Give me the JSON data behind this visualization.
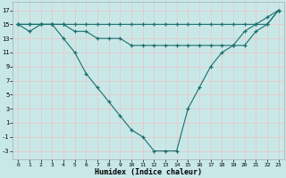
{
  "xlabel": "Humidex (Indice chaleur)",
  "background_color": "#c8e8e8",
  "grid_color": "#e8c8c8",
  "line_color": "#1a6e6e",
  "xlim": [
    -0.5,
    23.5
  ],
  "ylim": [
    -4.2,
    18.2
  ],
  "xticks": [
    0,
    1,
    2,
    3,
    4,
    5,
    6,
    7,
    8,
    9,
    10,
    11,
    12,
    13,
    14,
    15,
    16,
    17,
    18,
    19,
    20,
    21,
    22,
    23
  ],
  "yticks": [
    -3,
    -1,
    1,
    3,
    5,
    7,
    9,
    11,
    13,
    15,
    17
  ],
  "line1_x": [
    0,
    1,
    2,
    3,
    4,
    5,
    6,
    7,
    8,
    9,
    10,
    11,
    12,
    13,
    14,
    15,
    16,
    17,
    18,
    19,
    20,
    21,
    22,
    23
  ],
  "line1_y": [
    15,
    15,
    15,
    15,
    15,
    15,
    15,
    15,
    15,
    15,
    15,
    15,
    15,
    15,
    15,
    15,
    15,
    15,
    15,
    15,
    15,
    15,
    15,
    17
  ],
  "line2_x": [
    0,
    1,
    2,
    3,
    4,
    5,
    6,
    7,
    8,
    9,
    10,
    11,
    12,
    13,
    14,
    15,
    16,
    17,
    18,
    19,
    20,
    21,
    22,
    23
  ],
  "line2_y": [
    15,
    15,
    15,
    15,
    15,
    14,
    14,
    13,
    13,
    13,
    12,
    12,
    12,
    12,
    12,
    12,
    12,
    12,
    12,
    12,
    12,
    14,
    15,
    17
  ],
  "line3_x": [
    0,
    1,
    2,
    3,
    4,
    5,
    6,
    7,
    8,
    9,
    10,
    11,
    12,
    13,
    14,
    15,
    16,
    17,
    18,
    19,
    20,
    21,
    22,
    23
  ],
  "line3_y": [
    15,
    14,
    15,
    15,
    13,
    11,
    8,
    6,
    4,
    2,
    0,
    -1,
    -3,
    -3,
    -3,
    3,
    6,
    9,
    11,
    12,
    14,
    15,
    16,
    17
  ]
}
